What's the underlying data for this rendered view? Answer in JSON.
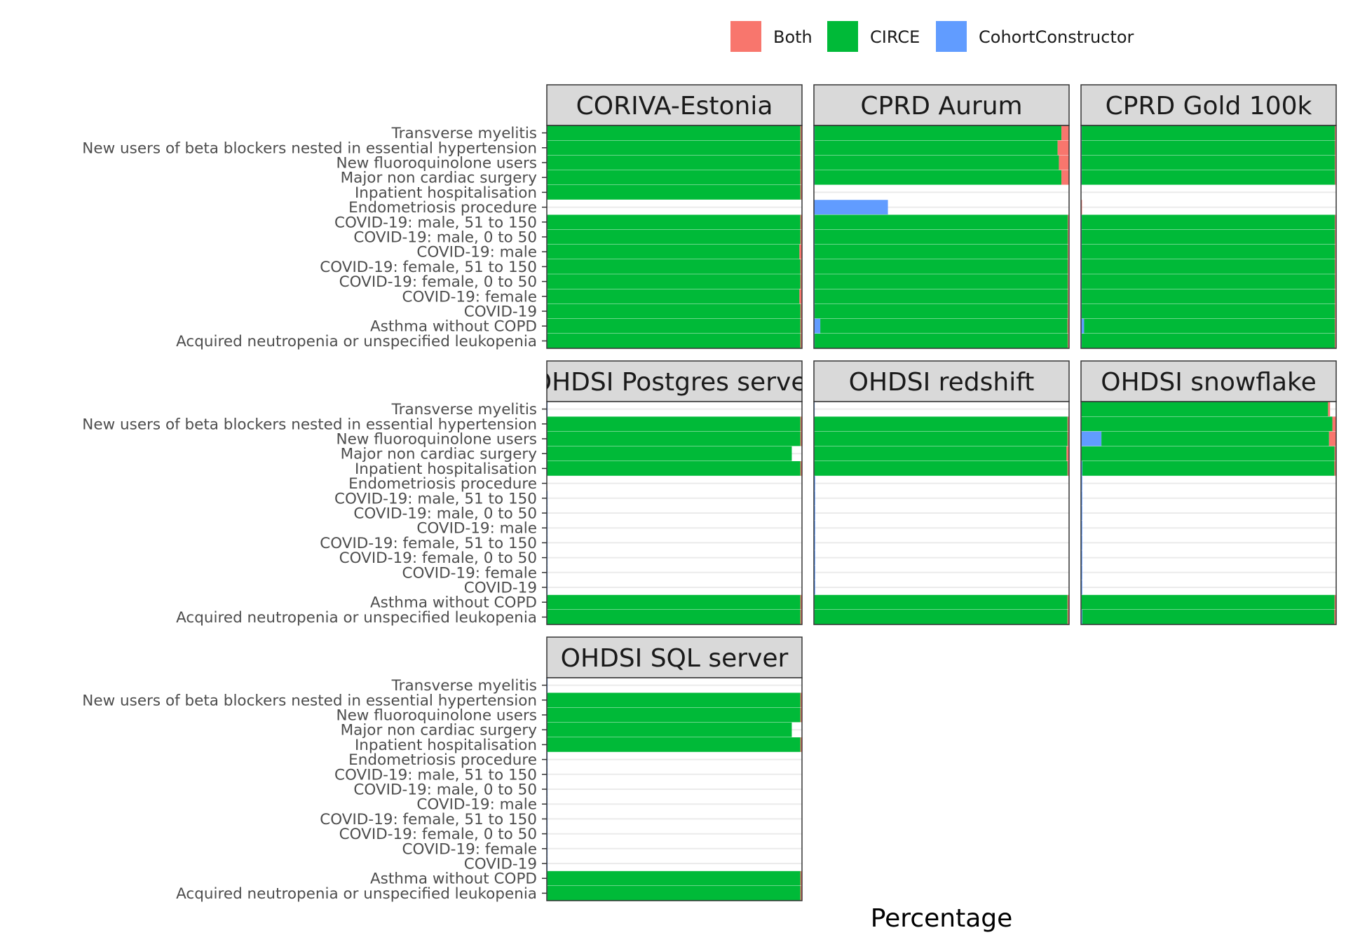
{
  "chart_data": {
    "type": "bar",
    "orientation": "horizontal",
    "stacked": true,
    "title": "",
    "xlabel": "Percentage",
    "ylabel": "",
    "xlim": [
      0,
      100
    ],
    "grid": true,
    "legend_position": "top-right",
    "legend": [
      {
        "name": "Both",
        "color": "#F8766D"
      },
      {
        "name": "CIRCE",
        "color": "#00BA38"
      },
      {
        "name": "CohortConstructor",
        "color": "#619CFF"
      }
    ],
    "categories": [
      "Transverse myelitis",
      "New users of beta blockers nested in essential hypertension",
      "New fluoroquinolone users",
      "Major non cardiac surgery",
      "Inpatient hospitalisation",
      "Endometriosis procedure",
      "COVID-19: male, 51 to 150",
      "COVID-19: male, 0 to 50",
      "COVID-19: male",
      "COVID-19: female, 51 to 150",
      "COVID-19: female, 0 to 50",
      "COVID-19: female",
      "COVID-19",
      "Asthma without COPD",
      "Acquired neutropenia or unspecified leukopenia"
    ],
    "panels": [
      {
        "name": "CORIVA-Estonia",
        "CohortConstructor": [
          0.2,
          0.2,
          0.2,
          0.2,
          0.2,
          null,
          0.2,
          0.2,
          0.2,
          0.2,
          0.2,
          0.2,
          0.2,
          0.2,
          0.2
        ],
        "CIRCE": [
          99.2,
          99.2,
          99.2,
          99.2,
          99.2,
          null,
          99.2,
          99.2,
          98.8,
          99.2,
          99.2,
          98.8,
          99.2,
          99.2,
          99.2
        ],
        "Both": [
          0.6,
          0.6,
          0.6,
          0.6,
          0.6,
          null,
          0.6,
          0.6,
          1.0,
          0.6,
          0.6,
          1.0,
          0.6,
          0.6,
          0.6
        ]
      },
      {
        "name": "CPRD Aurum",
        "CohortConstructor": [
          0.3,
          0.3,
          0.3,
          0.3,
          null,
          29.0,
          0.3,
          0.3,
          0.3,
          0.3,
          0.3,
          0.3,
          0.3,
          2.5,
          0.3
        ],
        "CIRCE": [
          96.7,
          95.2,
          95.7,
          96.7,
          null,
          0,
          99.2,
          99.2,
          99.2,
          99.2,
          99.2,
          99.2,
          99.2,
          96.9,
          99.2
        ],
        "Both": [
          3.0,
          4.5,
          4.0,
          3.0,
          null,
          0,
          0.5,
          0.5,
          0.5,
          0.5,
          0.5,
          0.5,
          0.5,
          0.6,
          0.5
        ]
      },
      {
        "name": "CPRD Gold 100k",
        "CohortConstructor": [
          0.3,
          0.3,
          0.3,
          0.3,
          null,
          null,
          0.3,
          0.3,
          0.3,
          0.3,
          0.3,
          0.3,
          0.3,
          1.2,
          0.3
        ],
        "CIRCE": [
          99.2,
          99.2,
          99.2,
          99.2,
          null,
          null,
          99.2,
          99.2,
          99.2,
          99.2,
          99.2,
          99.2,
          99.2,
          98.3,
          99.2
        ],
        "Both": [
          0.5,
          0.5,
          0.5,
          0.5,
          null,
          0.4,
          0.5,
          0.5,
          0.5,
          0.5,
          0.5,
          0.5,
          0.5,
          0.5,
          0.5
        ]
      },
      {
        "name": "OHDSI Postgres server",
        "CohortConstructor": [
          0.3,
          0.2,
          0.2,
          0.2,
          0.2,
          null,
          0.3,
          0.3,
          0.3,
          0.3,
          0.3,
          0.3,
          0.3,
          0.2,
          0.2
        ],
        "CIRCE": [
          null,
          99.2,
          99.2,
          95.8,
          99.2,
          null,
          null,
          null,
          null,
          null,
          null,
          null,
          null,
          99.2,
          99.2
        ],
        "Both": [
          null,
          0.6,
          0.6,
          0,
          0.6,
          null,
          null,
          null,
          null,
          null,
          null,
          null,
          null,
          0.6,
          0.6
        ]
      },
      {
        "name": "OHDSI redshift",
        "CohortConstructor": [
          0.3,
          0.2,
          0.2,
          0.2,
          0.2,
          0.5,
          0.5,
          0.5,
          0.5,
          0.5,
          0.5,
          0.5,
          0.5,
          0.2,
          0.2
        ],
        "CIRCE": [
          null,
          99.2,
          99.2,
          98.8,
          99.2,
          null,
          null,
          null,
          null,
          null,
          null,
          null,
          null,
          99.2,
          99.2
        ],
        "Both": [
          null,
          0.6,
          0.6,
          1.0,
          0.6,
          null,
          null,
          null,
          null,
          null,
          null,
          null,
          null,
          0.6,
          0.6
        ]
      },
      {
        "name": "OHDSI snowflake",
        "CohortConstructor": [
          0.2,
          0.2,
          8.0,
          0.2,
          0.5,
          0.5,
          0.5,
          0.5,
          0.5,
          0.5,
          0.5,
          0.5,
          0.5,
          0.2,
          0.5
        ],
        "CIRCE": [
          96.6,
          98.3,
          89.2,
          99.2,
          98.8,
          null,
          null,
          null,
          null,
          null,
          null,
          null,
          null,
          99.2,
          98.8
        ],
        "Both": [
          0.8,
          1.5,
          2.8,
          0.6,
          0.7,
          null,
          null,
          null,
          null,
          null,
          null,
          null,
          null,
          0.6,
          0.7
        ]
      },
      {
        "name": "OHDSI SQL server",
        "CohortConstructor": [
          0.3,
          0.2,
          0.2,
          0.2,
          0.2,
          0.3,
          0.3,
          0.3,
          0.3,
          0.3,
          0.3,
          0.3,
          0.3,
          0.2,
          0.2
        ],
        "CIRCE": [
          null,
          99.2,
          99.2,
          95.8,
          99.2,
          null,
          null,
          null,
          null,
          null,
          null,
          null,
          null,
          99.2,
          99.2
        ],
        "Both": [
          null,
          0.6,
          0.6,
          0,
          0.6,
          null,
          null,
          null,
          null,
          null,
          null,
          null,
          null,
          0.6,
          0.6
        ]
      }
    ]
  }
}
